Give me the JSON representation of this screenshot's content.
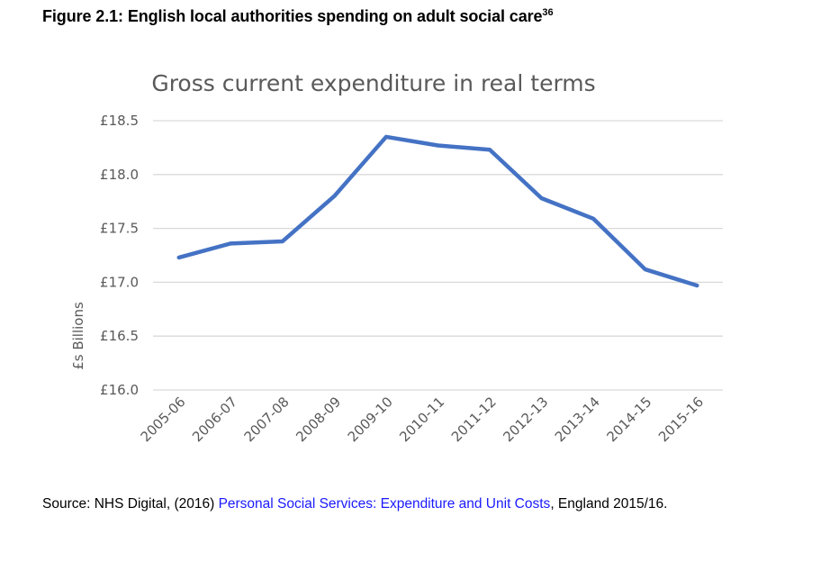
{
  "figure": {
    "title": "Figure 2.1: English local authorities spending on adult social care",
    "footnote_ref": "36"
  },
  "source": {
    "prefix": "Source: NHS Digital, (2016) ",
    "link_text": "Personal Social Services: Expenditure and Unit Costs",
    "suffix": ", England 2015/16."
  },
  "chart_data": {
    "type": "line",
    "title": "Gross current expenditure in real terms",
    "xlabel": "",
    "ylabel": "£s Billions",
    "ylim": [
      16.0,
      18.5
    ],
    "yticks": [
      16.0,
      16.5,
      17.0,
      17.5,
      18.0,
      18.5
    ],
    "ytick_labels": [
      "£16.0",
      "£16.5",
      "£17.0",
      "£17.5",
      "£18.0",
      "£18.5"
    ],
    "grid": true,
    "legend": "none",
    "categories": [
      "2005-06",
      "2006-07",
      "2007-08",
      "2008-09",
      "2009-10",
      "2010-11",
      "2011-12",
      "2012-13",
      "2013-14",
      "2014-15",
      "2015-16"
    ],
    "series": [
      {
        "name": "Gross current expenditure",
        "color": "#4472c4",
        "values": [
          17.23,
          17.36,
          17.38,
          17.8,
          18.35,
          18.27,
          18.23,
          17.78,
          17.59,
          17.12,
          16.97
        ]
      }
    ]
  }
}
